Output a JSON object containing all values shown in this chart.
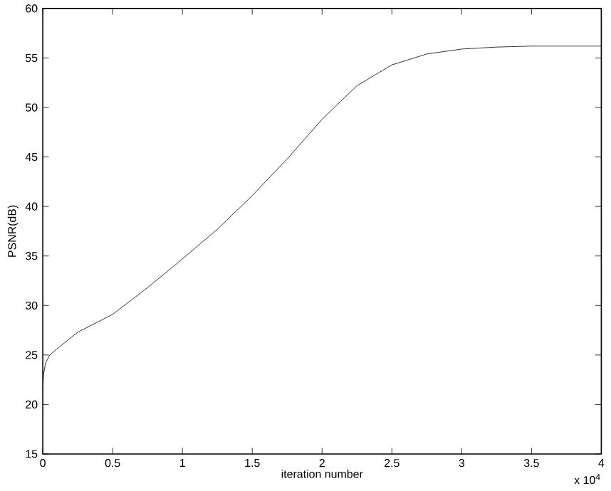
{
  "chart_data": {
    "type": "line",
    "xlabel": "iteration number",
    "ylabel": "PSNR(dB)",
    "x": [
      0,
      0.005,
      0.02,
      0.05,
      0.1,
      0.25,
      0.5,
      0.75,
      1,
      1.25,
      1.5,
      1.75,
      2,
      2.25,
      2.5,
      2.75,
      3,
      3.25,
      3.5,
      3.75,
      4
    ],
    "series": [
      {
        "color": "#000000",
        "values": [
          21.5,
          23,
          24.2,
          25,
          25.6,
          27.3,
          29.1,
          31.8,
          34.7,
          37.7,
          41.1,
          44.8,
          48.8,
          52.2,
          54.3,
          55.4,
          55.9,
          56.1,
          56.2,
          56.2,
          56.2
        ]
      }
    ],
    "xlim": [
      0,
      4
    ],
    "ylim": [
      15,
      60
    ],
    "xticks": [
      0,
      0.5,
      1,
      1.5,
      2,
      2.5,
      3,
      3.5,
      4
    ],
    "yticks": [
      15,
      20,
      25,
      30,
      35,
      40,
      45,
      50,
      55,
      60
    ],
    "annotations": [
      "x 10$^{4}$"
    ],
    "grid": false,
    "marker": "none",
    "line_style": "solid"
  }
}
